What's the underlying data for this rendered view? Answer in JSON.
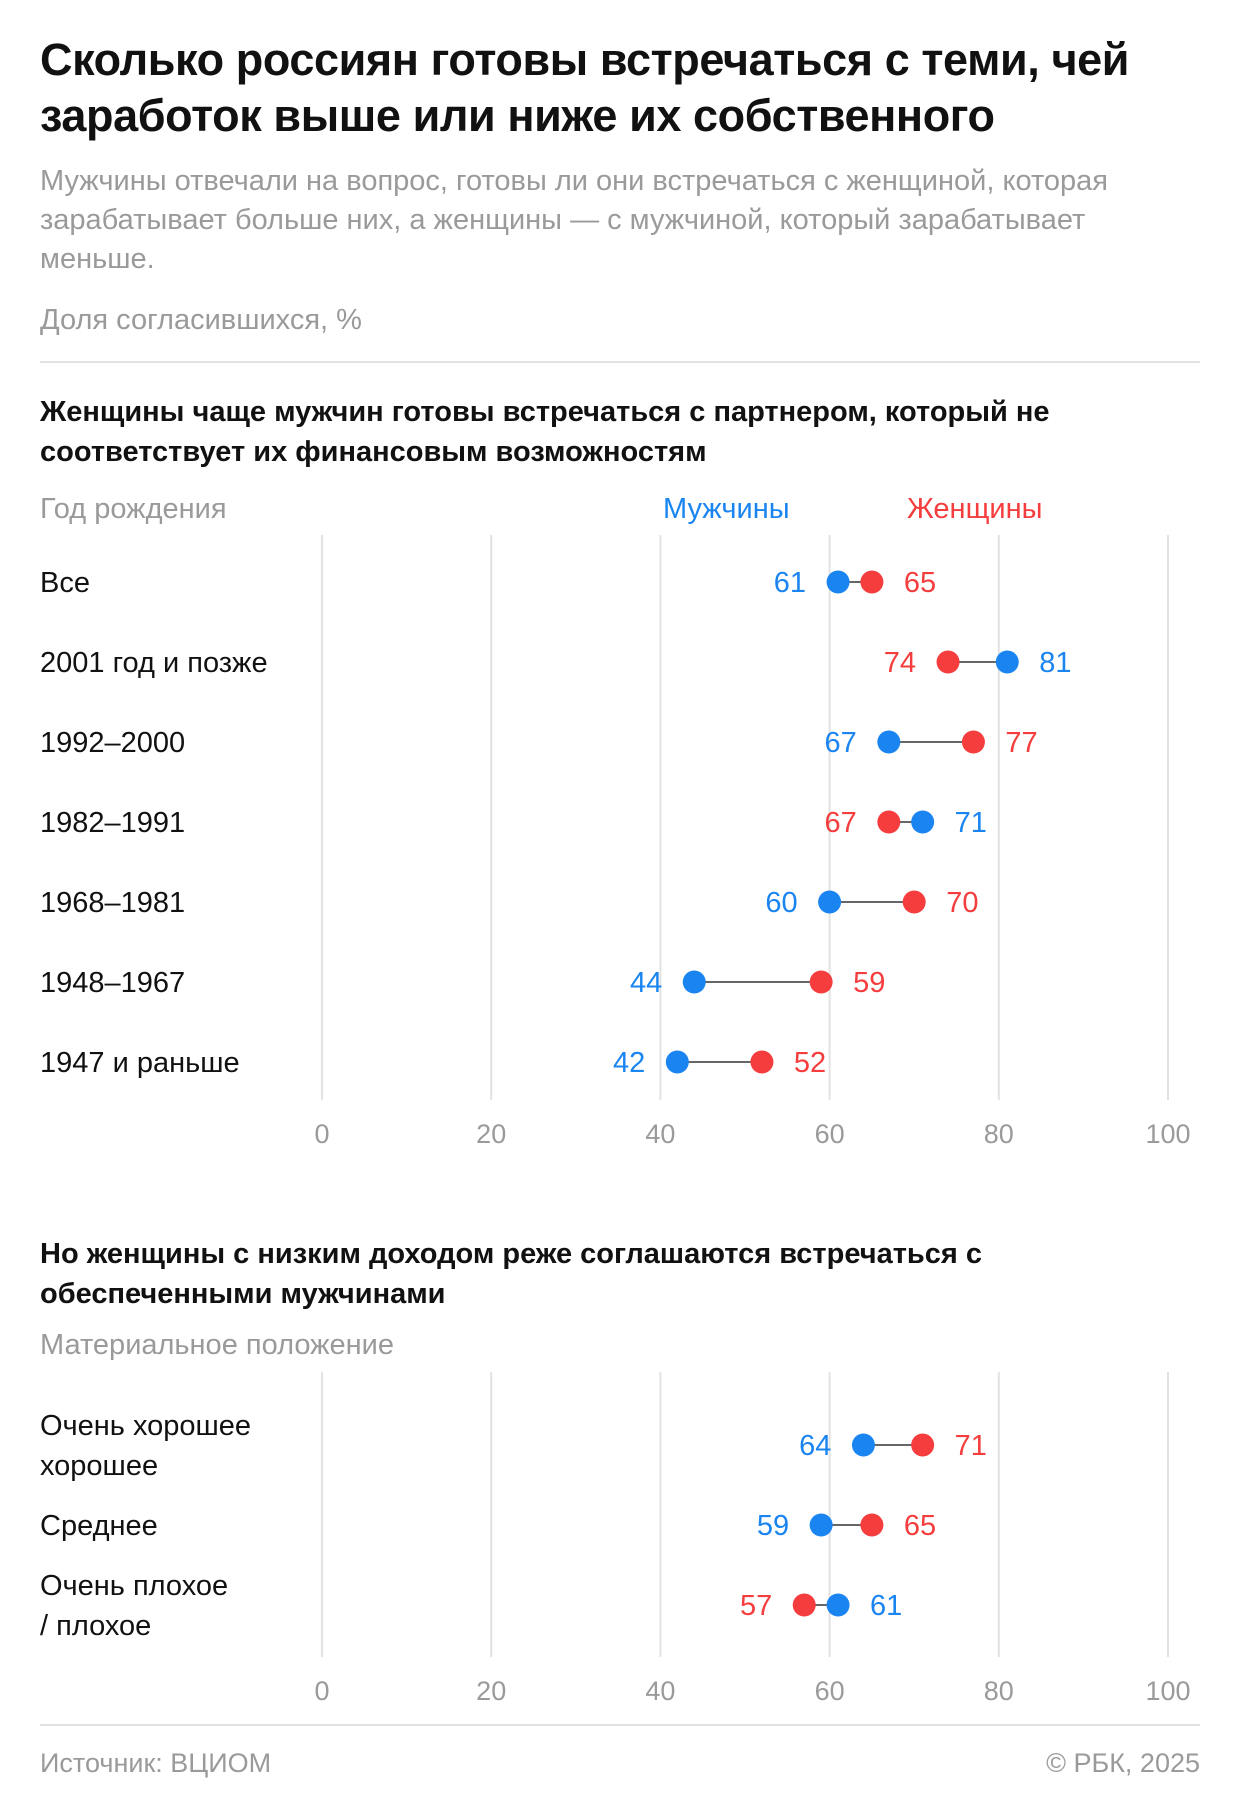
{
  "title": "Сколько россиян готовы встречаться с теми, чей заработок выше или ниже их собственного",
  "subtitle": "Мужчины отвечали на вопрос, готовы ли они встречаться с женщиной, которая зарабатывает больше них, а женщины — с мужчиной, который зарабатывает меньше.",
  "unit_label": "Доля согласившихся, %",
  "legend": {
    "men": "Мужчины",
    "women": "Женщины"
  },
  "colors": {
    "men": "#1a85f0",
    "women": "#f53d3d",
    "connector": "#333333",
    "grid": "#e2e2e2",
    "muted_text": "#9a9a9a"
  },
  "footer": {
    "source": "Источник: ВЦИОМ",
    "copyright": "© РБК, 2025"
  },
  "chart_data": [
    {
      "type": "dumbbell",
      "title": "Женщины чаще мужчин готовы встречаться с партнером, который не соответствует их финансовым возможностям",
      "category_axis_label": "Год рождения",
      "xlim": [
        0,
        100
      ],
      "xticks": [
        0,
        20,
        40,
        60,
        80,
        100
      ],
      "grid": true,
      "categories": [
        "Все",
        "2001 год и позже",
        "1992–2000",
        "1982–1991",
        "1968–1981",
        "1948–1967",
        "1947 и раньше"
      ],
      "series": [
        {
          "name": "Мужчины",
          "values": [
            61,
            81,
            67,
            71,
            60,
            44,
            42
          ]
        },
        {
          "name": "Женщины",
          "values": [
            65,
            74,
            77,
            67,
            70,
            59,
            52
          ]
        }
      ]
    },
    {
      "type": "dumbbell",
      "title": "Но женщины с низким доходом реже соглашаются встречаться с обеспеченными мужчинами",
      "category_axis_label": "Материальное положение",
      "xlim": [
        0,
        100
      ],
      "xticks": [
        0,
        20,
        40,
        60,
        80,
        100
      ],
      "grid": true,
      "categories": [
        "Очень хорошее / хорошее",
        "Среднее",
        "Очень плохое / плохое"
      ],
      "series": [
        {
          "name": "Мужчины",
          "values": [
            64,
            59,
            61
          ]
        },
        {
          "name": "Женщины",
          "values": [
            71,
            65,
            57
          ]
        }
      ]
    }
  ]
}
